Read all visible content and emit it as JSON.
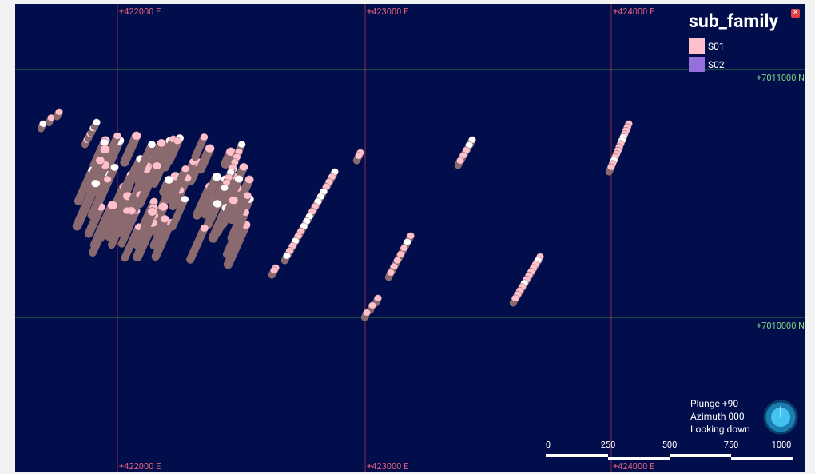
{
  "grid_labels": {
    "top": [
      "+422000 E",
      "+423000 E",
      "+424000 E"
    ],
    "bottom": [
      "+422000 E",
      "+423000 E",
      "+424000 E"
    ],
    "right": [
      "+7011000 N",
      "+7010000 N"
    ]
  },
  "legend": {
    "title": "sub_family",
    "entries": [
      {
        "label": "S01",
        "color": "#ffc0cb"
      },
      {
        "label": "S02",
        "color": "#9370db"
      }
    ]
  },
  "orientation": [
    "Plunge +90",
    "Azimuth 000",
    "Looking down"
  ],
  "scale_bar": [
    "0",
    "250",
    "500",
    "750",
    "1000"
  ]
}
